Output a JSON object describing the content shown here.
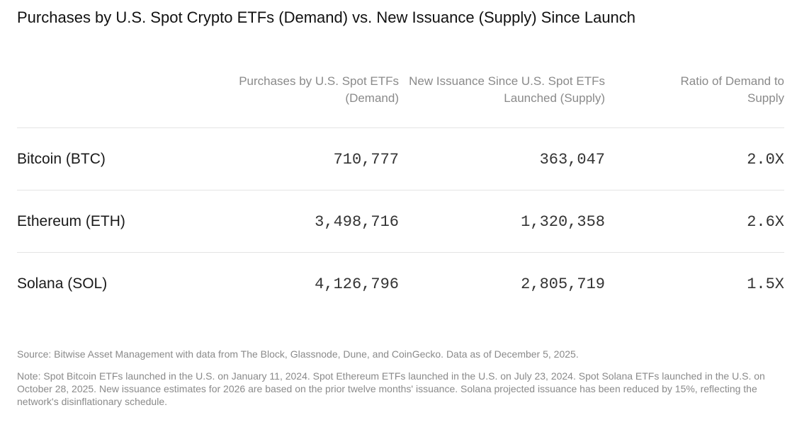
{
  "chart_data": {
    "type": "table",
    "title": "Purchases by U.S. Spot Crypto ETFs (Demand) vs. New Issuance (Supply) Since Launch",
    "columns": [
      "Purchases by U.S. Spot ETFs (Demand)",
      "New Issuance Since U.S. Spot ETFs Launched (Supply)",
      "Ratio of Demand to Supply"
    ],
    "rows": [
      {
        "label": "Bitcoin (BTC)",
        "demand": "710,777",
        "supply": "363,047",
        "ratio": "2.0X"
      },
      {
        "label": "Ethereum (ETH)",
        "demand": "3,498,716",
        "supply": "1,320,358",
        "ratio": "2.6X"
      },
      {
        "label": "Solana (SOL)",
        "demand": "4,126,796",
        "supply": "2,805,719",
        "ratio": "1.5X"
      }
    ]
  },
  "source": "Source: Bitwise Asset Management with data from The Block, Glassnode, Dune, and CoinGecko. Data as of December 5, 2025.",
  "note": "Note: Spot Bitcoin ETFs launched in the U.S. on January 11, 2024. Spot Ethereum ETFs launched in the U.S. on July 23, 2024. Spot Solana ETFs launched in the U.S. on October 28, 2025. New issuance estimates for 2026 are based on the prior twelve months' issuance. Solana projected issuance has been reduced by 15%, reflecting the network's disinflationary schedule."
}
